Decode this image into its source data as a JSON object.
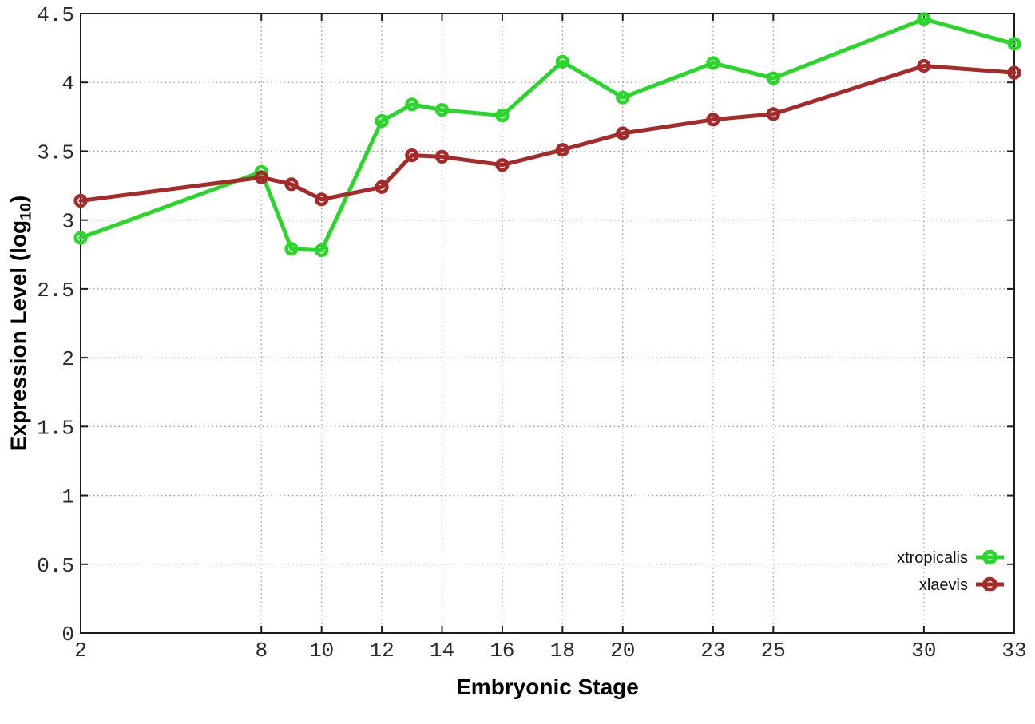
{
  "chart_data": {
    "type": "line",
    "title": "",
    "xlabel": "Embryonic Stage",
    "ylabel": "Expression Level (log10)",
    "ylabel_parts": {
      "pre": "Expression Level (log",
      "sub": "10",
      "post": ")"
    },
    "stages": [
      2,
      8,
      9,
      10,
      12,
      13,
      14,
      16,
      18,
      20,
      23,
      25,
      30,
      33
    ],
    "xticks": [
      2,
      8,
      10,
      12,
      14,
      16,
      18,
      20,
      23,
      25,
      30,
      33
    ],
    "yticks": [
      0,
      0.5,
      1,
      1.5,
      2,
      2.5,
      3,
      3.5,
      4,
      4.5
    ],
    "xlim": [
      2,
      33
    ],
    "ylim": [
      0,
      4.5
    ],
    "grid": true,
    "marker": "open-circle",
    "legend_position": "bottom-right",
    "series": [
      {
        "name": "xtropicalis",
        "color": "#2ad62a",
        "values": [
          2.87,
          3.35,
          2.79,
          2.78,
          3.72,
          3.84,
          3.8,
          3.76,
          4.15,
          3.89,
          4.14,
          4.03,
          4.46,
          4.28
        ]
      },
      {
        "name": "xlaevis",
        "color": "#a52a2a",
        "values": [
          3.14,
          3.31,
          3.26,
          3.15,
          3.24,
          3.47,
          3.46,
          3.4,
          3.51,
          3.63,
          3.73,
          3.77,
          4.12,
          4.07
        ]
      }
    ],
    "border_color": "#1c1c1c",
    "grid_color": "#9b9b9b"
  }
}
